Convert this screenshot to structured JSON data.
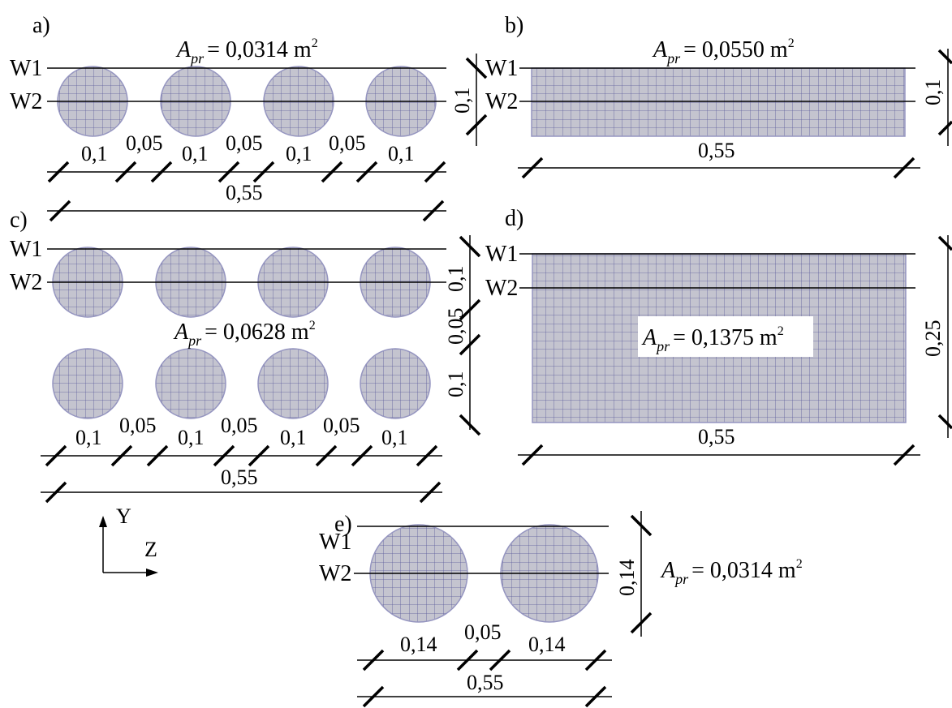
{
  "panels": {
    "a": {
      "label": "a)",
      "area": {
        "A": "A",
        "sub": "pr",
        "value": "= 0,0314 m",
        "sup": "2"
      },
      "w1": "W1",
      "w2": "W2",
      "gaps": [
        "0,1",
        "0,05",
        "0,1",
        "0,05",
        "0,1",
        "0,05",
        "0,1"
      ],
      "total": "0,55",
      "height": "0,1"
    },
    "b": {
      "label": "b)",
      "area": {
        "A": "A",
        "sub": "pr",
        "value": "= 0,0550 m",
        "sup": "2"
      },
      "w1": "W1",
      "w2": "W2",
      "width": "0,55",
      "height": "0,1"
    },
    "c": {
      "label": "c)",
      "area": {
        "A": "A",
        "sub": "pr",
        "value": "= 0,0628 m",
        "sup": "2"
      },
      "w1": "W1",
      "w2": "W2",
      "gaps": [
        "0,1",
        "0,05",
        "0,1",
        "0,05",
        "0,1",
        "0,05",
        "0,1"
      ],
      "total": "0,55",
      "heights": [
        "0,1",
        "0,05",
        "0,1"
      ]
    },
    "d": {
      "label": "d)",
      "area": {
        "A": "A",
        "sub": "pr",
        "value": "= 0,1375 m",
        "sup": "2"
      },
      "w1": "W1",
      "w2": "W2",
      "width": "0,55",
      "height": "0,25"
    },
    "e": {
      "label": "e)",
      "area": {
        "A": "A",
        "sub": "pr",
        "value": "= 0,0314 m",
        "sup": "2"
      },
      "w1": "W1",
      "w2": "W2",
      "gaps": [
        "0,14",
        "0,05",
        "0,14"
      ],
      "total": "0,55",
      "height": "0,14"
    }
  },
  "axes": {
    "y": "Y",
    "z": "Z"
  },
  "colors": {
    "fill": "#c4c4cf",
    "mesh": "#5a5a9a",
    "outline": "#9595c0",
    "line": "#000000"
  }
}
